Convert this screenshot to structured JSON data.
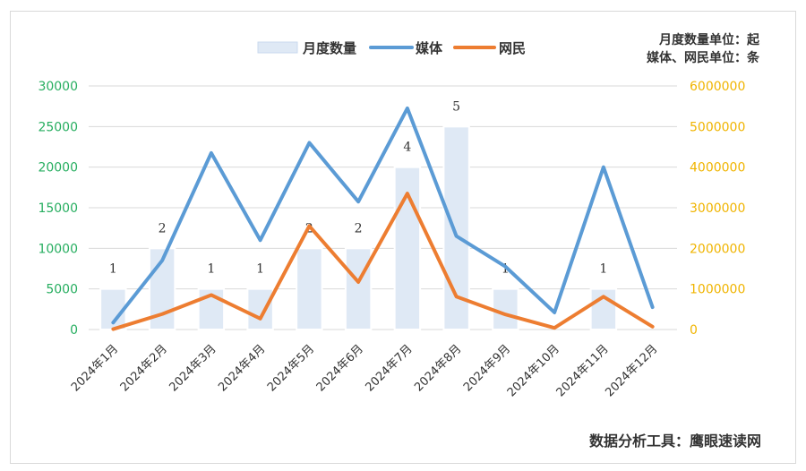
{
  "chart_data": {
    "type": "bar",
    "categories": [
      "2024年1月",
      "2024年2月",
      "2024年3月",
      "2024年4月",
      "2024年5月",
      "2024年6月",
      "2024年7月",
      "2024年8月",
      "2024年9月",
      "2024年10月",
      "2024年11月",
      "2024年12月"
    ],
    "series": [
      {
        "name": "月度数量",
        "type": "bar",
        "axis": "left",
        "values": [
          1,
          2,
          1,
          1,
          2,
          2,
          4,
          5,
          1,
          0,
          1,
          0
        ],
        "labels": [
          "1",
          "2",
          "1",
          "1",
          "2",
          "2",
          "4",
          "5",
          "1",
          "",
          "1",
          ""
        ]
      },
      {
        "name": "媒体",
        "type": "line",
        "axis": "right",
        "values": [
          170000,
          1700000,
          4350000,
          2200000,
          4600000,
          3150000,
          5450000,
          2300000,
          1550000,
          420000,
          4000000,
          550000
        ]
      },
      {
        "name": "网民",
        "type": "line",
        "axis": "right",
        "values": [
          10000,
          380000,
          850000,
          270000,
          2550000,
          1170000,
          3350000,
          810000,
          370000,
          40000,
          810000,
          70000
        ]
      }
    ],
    "left_axis": {
      "ticks": [
        "0",
        "5000",
        "10000",
        "15000",
        "20000",
        "25000",
        "30000"
      ],
      "range": [
        0,
        30000
      ]
    },
    "right_axis": {
      "ticks": [
        "0",
        "1000000",
        "2000000",
        "3000000",
        "4000000",
        "5000000",
        "6000000"
      ],
      "range": [
        0,
        6000000
      ]
    },
    "bar_unit": 5000,
    "colors": {
      "bar": "#dfe9f5",
      "bar_stroke": "#ffffff",
      "media": "#5b9bd5",
      "netizen": "#ed7d31",
      "left_tick": "#27ae60",
      "right_tick": "#f0b400",
      "grid": "#d9d9d9"
    },
    "unit_note": [
      "月度数量单位：起",
      "媒体、网民单位：条"
    ],
    "footer": "数据分析工具：鹰眼速读网",
    "legend_position": "top"
  }
}
